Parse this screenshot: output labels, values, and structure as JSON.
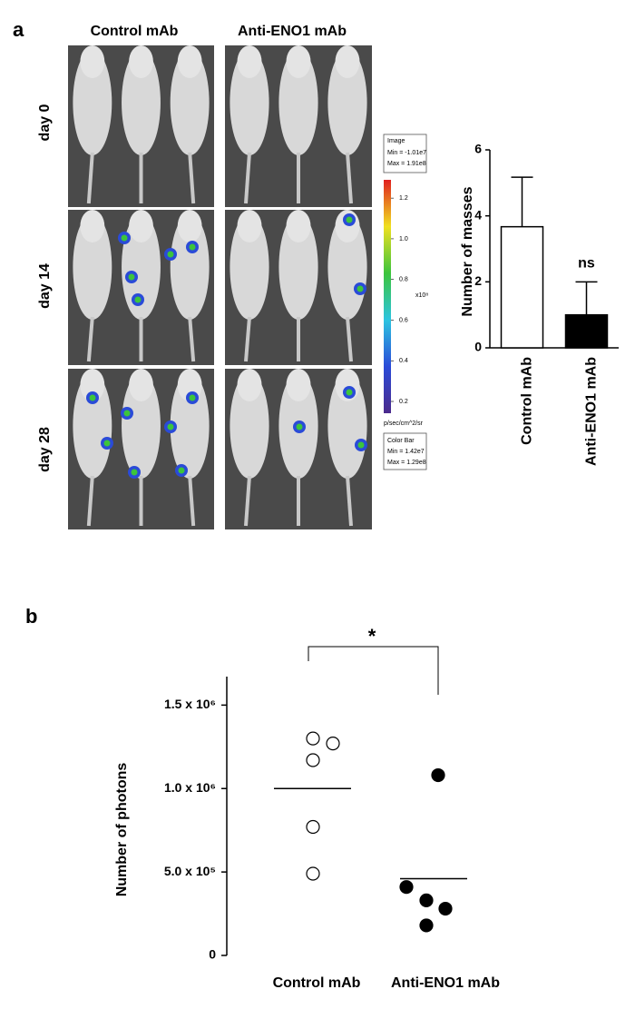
{
  "figure": {
    "panel_a": "a",
    "panel_b": "b",
    "columns": [
      "Control mAb",
      "Anti-ENO1 mAb"
    ],
    "rows": [
      "day 0",
      "day 14",
      "day 28"
    ],
    "colorbar": {
      "image_box": [
        "Image",
        "Min = -1.01e7",
        "Max = 1.91e8"
      ],
      "lim": [
        0.142,
        1.29
      ],
      "ticks": [
        {
          "value": 1.2,
          "label": "1.2"
        },
        {
          "value": 1,
          "label": "1.0"
        },
        {
          "value": 0.8,
          "label": "0.8"
        },
        {
          "value": 0.6,
          "label": "0.6"
        },
        {
          "value": 0.4,
          "label": "0.4"
        },
        {
          "value": 0.2,
          "label": "0.2"
        }
      ],
      "multiplier": "x10⁸",
      "unit": "p/sec/cm^2/sr",
      "bar_box": [
        "Color Bar",
        "Min = 1.42e7",
        "Max = 1.29e8"
      ]
    }
  },
  "chart_data": [
    {
      "type": "bar",
      "y_label": "Number of masses",
      "categories": [
        "Control mAb",
        "Anti-ENO1 mAb"
      ],
      "values": [
        3.67,
        1
      ],
      "errors": [
        1.5,
        1
      ],
      "colors": [
        "#ffffff",
        "#000000"
      ],
      "annotation": "ns",
      "ylim": [
        0,
        6
      ],
      "yticks": [
        0,
        2,
        4,
        6
      ]
    },
    {
      "type": "dot",
      "y_label": "Number of photons",
      "categories": [
        "Control mAb",
        "Anti-ENO1 mAb"
      ],
      "groups": [
        [
          1300000,
          1270000,
          1170000,
          770000,
          490000
        ],
        [
          1080000,
          410000,
          330000,
          280000,
          180000
        ]
      ],
      "means": [
        1000000,
        460000
      ],
      "colors": [
        "#ffffff",
        "#000000"
      ],
      "annotation": "*",
      "ylim": [
        0,
        1600000
      ],
      "yticks": [
        0,
        {
          "value": 500000,
          "label": "5.0 x 10⁵"
        },
        {
          "value": 1000000,
          "label": "1.0 x 10⁶"
        },
        {
          "value": 1500000,
          "label": "1.5 x 10⁶"
        }
      ]
    }
  ]
}
